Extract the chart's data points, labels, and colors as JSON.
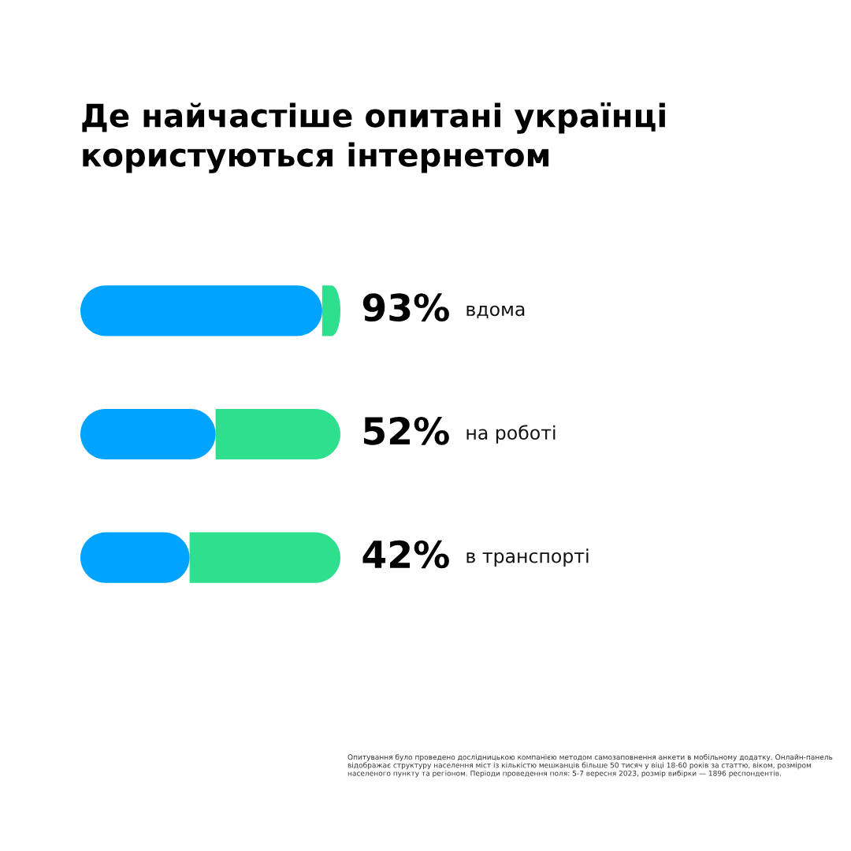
{
  "chart_data": {
    "type": "bar",
    "orientation": "horizontal",
    "stacked": true,
    "title": "Де найчастіше опитані українці\nкористуються інтернетом",
    "categories": [
      "вдома",
      "на роботі",
      "в транспорті"
    ],
    "series": [
      {
        "color": "#00a3ff",
        "values": [
          93,
          52,
          42
        ],
        "value_labels": [
          "93%",
          "52%",
          "42%"
        ]
      },
      {
        "color": "#2ee08e",
        "values": [
          7,
          48,
          58
        ]
      }
    ],
    "xlim": [
      0,
      100
    ],
    "tick_labels": "y",
    "annotations": [
      "Опитування було проведено дослідницькою компанією методом самозаповнення анкети в мобільному додатку. Онлайн-панель відображає структуру населення міст із кількістю мешканців більше 50 тисяч у віці 18-60 років за статтю, віком, розміром населеного пункту та регіоном. Періоди проведення поля: 5-7 вересня 2023, розмір вибірки — 1896 респондентів."
    ]
  }
}
